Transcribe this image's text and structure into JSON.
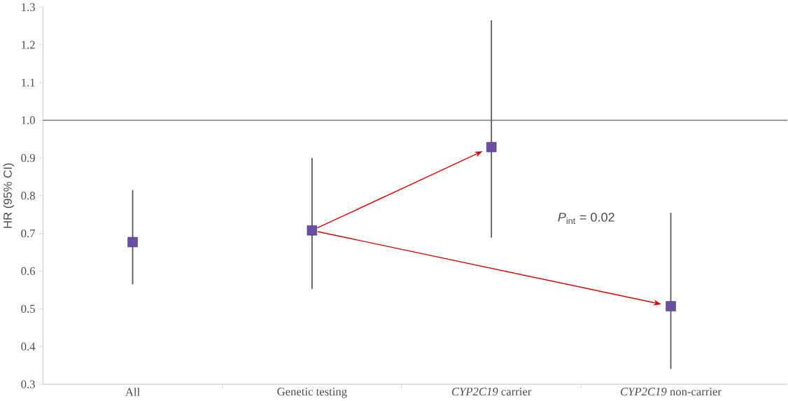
{
  "chart_data": {
    "type": "scatter",
    "ylabel": "HR (95% CI)",
    "categories": [
      "All",
      "Genetic testing",
      "*CYP2C19* carrier",
      "*CYP2C19* non-carrier"
    ],
    "series": [
      {
        "color": "#6a4fa0",
        "values": [
          0.677,
          0.708,
          0.929,
          0.507
        ],
        "errors": [
          [
            0.565,
            0.815
          ],
          [
            0.553,
            0.9
          ],
          [
            0.689,
            1.265
          ],
          [
            0.341,
            0.755
          ]
        ]
      }
    ],
    "ylim": [
      0.3,
      1.3
    ],
    "yticks": [
      0.3,
      0.4,
      0.5,
      0.6,
      0.7,
      0.8,
      0.9,
      {
        "value": 1.0,
        "label": "1.0"
      },
      1.1,
      1.2,
      1.3
    ],
    "ref_lines": [
      {
        "axis": "y",
        "value": 1.0,
        "color": "#808080"
      }
    ],
    "annotations": [
      "*P*$_{int}$ = 0.02"
    ],
    "marker": "square",
    "grid": false
  }
}
